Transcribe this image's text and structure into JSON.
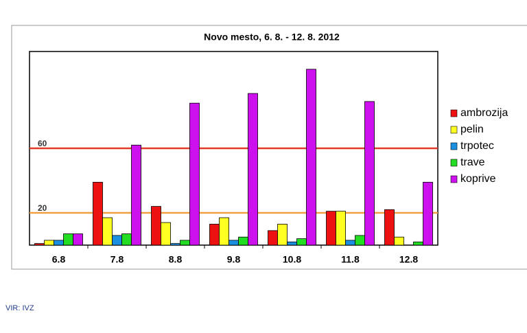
{
  "chart_data": {
    "type": "bar",
    "title": "Novo mesto, 6. 8. -  12. 8. 2012",
    "categories": [
      "6.8",
      "7.8",
      "8.8",
      "9.8",
      "10.8",
      "11.8",
      "12.8"
    ],
    "series": [
      {
        "name": "ambrozija",
        "color": "#ee1111",
        "values": [
          1,
          39,
          24,
          13,
          9,
          21,
          22
        ]
      },
      {
        "name": "pelin",
        "color": "#ffff22",
        "values": [
          3,
          17,
          14,
          17,
          13,
          21,
          5
        ]
      },
      {
        "name": "trpotec",
        "color": "#1b8fe0",
        "values": [
          3,
          6,
          1,
          3,
          2,
          3,
          0
        ]
      },
      {
        "name": "trave",
        "color": "#22dd22",
        "values": [
          7,
          7,
          3,
          5,
          4,
          6,
          2
        ]
      },
      {
        "name": "koprive",
        "color": "#cc11ee",
        "values": [
          7,
          62,
          88,
          94,
          109,
          89,
          39
        ]
      }
    ],
    "ylim": [
      0,
      120
    ],
    "reference_lines": [
      {
        "value": 60,
        "color": "#e03a28"
      },
      {
        "value": 20,
        "color": "#f0a040"
      }
    ]
  },
  "source": "VIR: IVZ"
}
